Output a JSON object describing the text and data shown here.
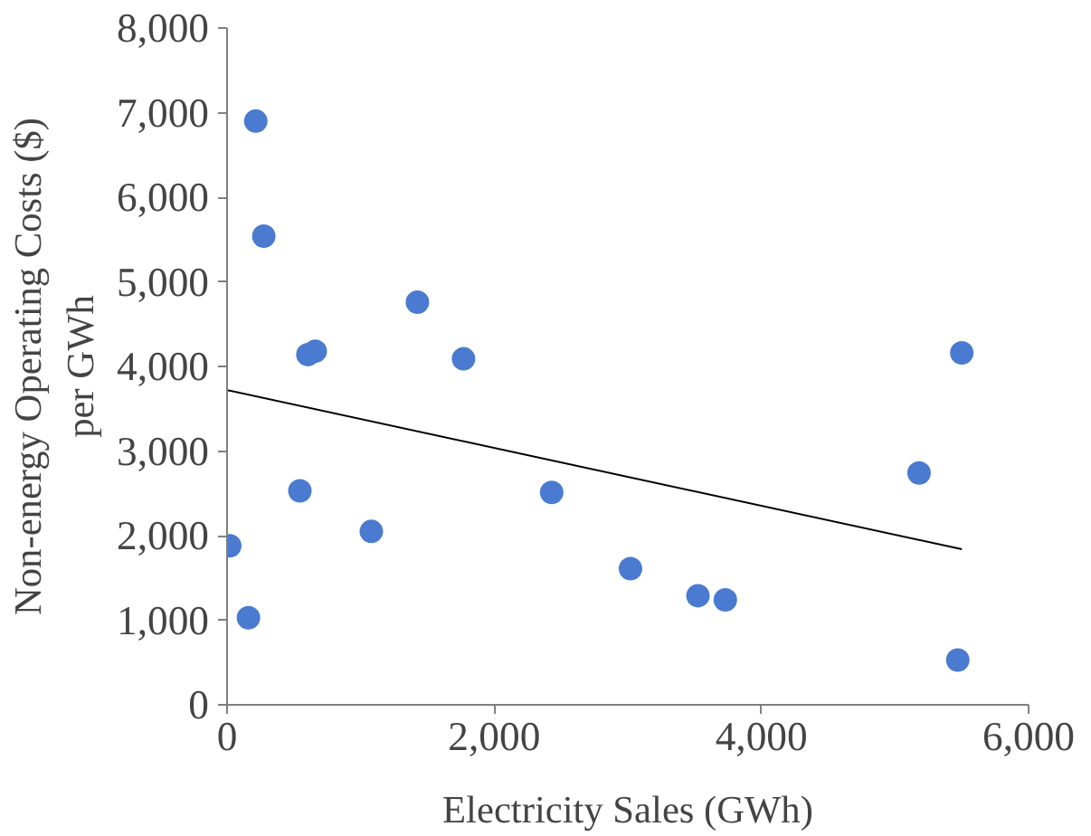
{
  "chart_data": {
    "type": "scatter",
    "xlabel": "Electricity Sales (GWh)",
    "ylabel": "Non-energy Operating Costs ($)\nper GWh",
    "series": [
      {
        "color": "#4a7bd0",
        "x": [
          20,
          160,
          215,
          275,
          545,
          605,
          660,
          1080,
          1425,
          1770,
          2430,
          3020,
          3525,
          3730,
          5180,
          5470,
          5500
        ],
        "values": [
          1880,
          1030,
          6900,
          5540,
          2530,
          4140,
          4180,
          2050,
          4760,
          4090,
          2510,
          1610,
          1290,
          1240,
          2740,
          530,
          4160
        ]
      },
      {
        "type": "line",
        "marker": "none",
        "color": "#000000",
        "x": [
          0,
          5500
        ],
        "values": [
          3720,
          1840
        ]
      }
    ],
    "marker": "circle",
    "xlim": [
      0,
      6000
    ],
    "xticks": [
      {
        "value": 0,
        "label": "0"
      },
      {
        "value": 2000,
        "label": "2,000"
      },
      {
        "value": 4000,
        "label": "4,000"
      },
      {
        "value": 6000,
        "label": "6,000"
      }
    ],
    "ylim": [
      0,
      8000
    ],
    "yticks": [
      {
        "value": 0,
        "label": "0"
      },
      {
        "value": 1000,
        "label": "1,000"
      },
      {
        "value": 2000,
        "label": "2,000"
      },
      {
        "value": 3000,
        "label": "3,000"
      },
      {
        "value": 4000,
        "label": "4,000"
      },
      {
        "value": 5000,
        "label": "5,000"
      },
      {
        "value": 6000,
        "label": "6,000"
      },
      {
        "value": 7000,
        "label": "7,000"
      },
      {
        "value": 8000,
        "label": "8,000"
      }
    ],
    "grid": false
  }
}
